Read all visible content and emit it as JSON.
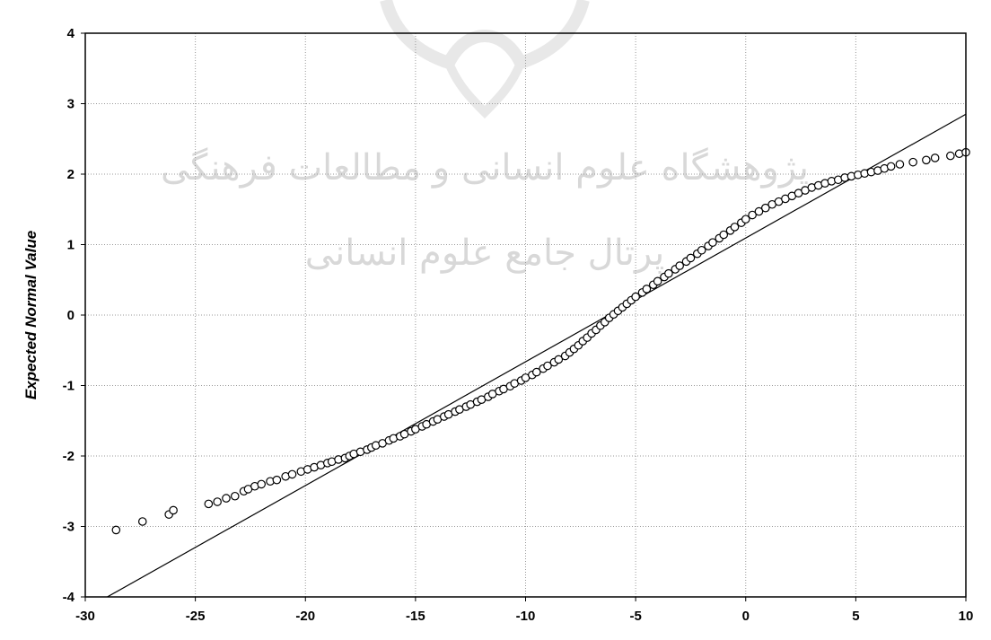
{
  "chart_data": {
    "type": "scatter",
    "title": "",
    "xlabel": "",
    "ylabel": "Expected Normal Value",
    "xlim": [
      -30,
      10
    ],
    "ylim": [
      -4,
      4
    ],
    "x_ticks": [
      -30,
      -25,
      -20,
      -15,
      -10,
      -5,
      0,
      5,
      10
    ],
    "y_ticks": [
      -4,
      -3,
      -2,
      -1,
      0,
      1,
      2,
      3,
      4
    ],
    "grid": true,
    "legend": "none",
    "marker": "open-circle",
    "reference_line": {
      "x": [
        -29,
        10
      ],
      "y": [
        -4.0,
        2.85
      ]
    },
    "points": [
      [
        -28.6,
        -3.05
      ],
      [
        -27.4,
        -2.93
      ],
      [
        -26.2,
        -2.83
      ],
      [
        -26.0,
        -2.77
      ],
      [
        -24.4,
        -2.68
      ],
      [
        -24.0,
        -2.65
      ],
      [
        -23.6,
        -2.6
      ],
      [
        -23.2,
        -2.57
      ],
      [
        -22.8,
        -2.5
      ],
      [
        -22.6,
        -2.47
      ],
      [
        -22.3,
        -2.43
      ],
      [
        -22.0,
        -2.4
      ],
      [
        -21.6,
        -2.36
      ],
      [
        -21.3,
        -2.34
      ],
      [
        -20.9,
        -2.29
      ],
      [
        -20.6,
        -2.26
      ],
      [
        -20.2,
        -2.22
      ],
      [
        -19.9,
        -2.19
      ],
      [
        -19.6,
        -2.16
      ],
      [
        -19.3,
        -2.13
      ],
      [
        -19.0,
        -2.1
      ],
      [
        -18.8,
        -2.08
      ],
      [
        -18.5,
        -2.05
      ],
      [
        -18.2,
        -2.03
      ],
      [
        -18.0,
        -2.0
      ],
      [
        -17.8,
        -1.97
      ],
      [
        -17.5,
        -1.94
      ],
      [
        -17.2,
        -1.91
      ],
      [
        -17.0,
        -1.88
      ],
      [
        -16.8,
        -1.85
      ],
      [
        -16.5,
        -1.82
      ],
      [
        -16.2,
        -1.78
      ],
      [
        -16.0,
        -1.75
      ],
      [
        -15.7,
        -1.72
      ],
      [
        -15.5,
        -1.69
      ],
      [
        -15.2,
        -1.65
      ],
      [
        -15.0,
        -1.62
      ],
      [
        -14.7,
        -1.58
      ],
      [
        -14.5,
        -1.55
      ],
      [
        -14.2,
        -1.51
      ],
      [
        -14.0,
        -1.48
      ],
      [
        -13.7,
        -1.44
      ],
      [
        -13.5,
        -1.41
      ],
      [
        -13.2,
        -1.37
      ],
      [
        -13.0,
        -1.34
      ],
      [
        -12.7,
        -1.3
      ],
      [
        -12.5,
        -1.27
      ],
      [
        -12.2,
        -1.23
      ],
      [
        -12.0,
        -1.2
      ],
      [
        -11.7,
        -1.16
      ],
      [
        -11.5,
        -1.12
      ],
      [
        -11.2,
        -1.08
      ],
      [
        -11.0,
        -1.05
      ],
      [
        -10.7,
        -1.01
      ],
      [
        -10.5,
        -0.97
      ],
      [
        -10.2,
        -0.93
      ],
      [
        -10.0,
        -0.89
      ],
      [
        -9.7,
        -0.85
      ],
      [
        -9.5,
        -0.81
      ],
      [
        -9.2,
        -0.76
      ],
      [
        -9.0,
        -0.72
      ],
      [
        -8.7,
        -0.67
      ],
      [
        -8.5,
        -0.63
      ],
      [
        -8.2,
        -0.58
      ],
      [
        -8.0,
        -0.53
      ],
      [
        -7.8,
        -0.48
      ],
      [
        -7.6,
        -0.43
      ],
      [
        -7.4,
        -0.37
      ],
      [
        -7.2,
        -0.32
      ],
      [
        -7.0,
        -0.26
      ],
      [
        -6.8,
        -0.21
      ],
      [
        -6.6,
        -0.15
      ],
      [
        -6.4,
        -0.1
      ],
      [
        -6.2,
        -0.04
      ],
      [
        -6.0,
        0.01
      ],
      [
        -5.8,
        0.06
      ],
      [
        -5.6,
        0.11
      ],
      [
        -5.4,
        0.16
      ],
      [
        -5.2,
        0.21
      ],
      [
        -5.0,
        0.26
      ],
      [
        -4.7,
        0.32
      ],
      [
        -4.5,
        0.37
      ],
      [
        -4.2,
        0.43
      ],
      [
        -4.0,
        0.48
      ],
      [
        -3.7,
        0.54
      ],
      [
        -3.5,
        0.59
      ],
      [
        -3.2,
        0.65
      ],
      [
        -3.0,
        0.7
      ],
      [
        -2.7,
        0.76
      ],
      [
        -2.5,
        0.81
      ],
      [
        -2.2,
        0.87
      ],
      [
        -2.0,
        0.92
      ],
      [
        -1.7,
        0.98
      ],
      [
        -1.5,
        1.03
      ],
      [
        -1.2,
        1.09
      ],
      [
        -1.0,
        1.14
      ],
      [
        -0.7,
        1.2
      ],
      [
        -0.5,
        1.25
      ],
      [
        -0.2,
        1.31
      ],
      [
        0.0,
        1.36
      ],
      [
        0.3,
        1.42
      ],
      [
        0.6,
        1.47
      ],
      [
        0.9,
        1.52
      ],
      [
        1.2,
        1.57
      ],
      [
        1.5,
        1.61
      ],
      [
        1.8,
        1.65
      ],
      [
        2.1,
        1.69
      ],
      [
        2.4,
        1.73
      ],
      [
        2.7,
        1.77
      ],
      [
        3.0,
        1.81
      ],
      [
        3.3,
        1.84
      ],
      [
        3.6,
        1.87
      ],
      [
        3.9,
        1.9
      ],
      [
        4.2,
        1.92
      ],
      [
        4.5,
        1.95
      ],
      [
        4.8,
        1.97
      ],
      [
        5.1,
        1.99
      ],
      [
        5.4,
        2.01
      ],
      [
        5.7,
        2.03
      ],
      [
        6.0,
        2.05
      ],
      [
        6.3,
        2.08
      ],
      [
        6.6,
        2.11
      ],
      [
        7.0,
        2.14
      ],
      [
        7.6,
        2.17
      ],
      [
        8.2,
        2.2
      ],
      [
        8.6,
        2.23
      ],
      [
        9.3,
        2.26
      ],
      [
        9.7,
        2.29
      ],
      [
        10.0,
        2.31
      ]
    ]
  },
  "watermark": {
    "line1": "پژوهشگاه علوم انسانی و مطالعات فرهنگی",
    "line2": "پرتال جامع علوم انسانی"
  }
}
